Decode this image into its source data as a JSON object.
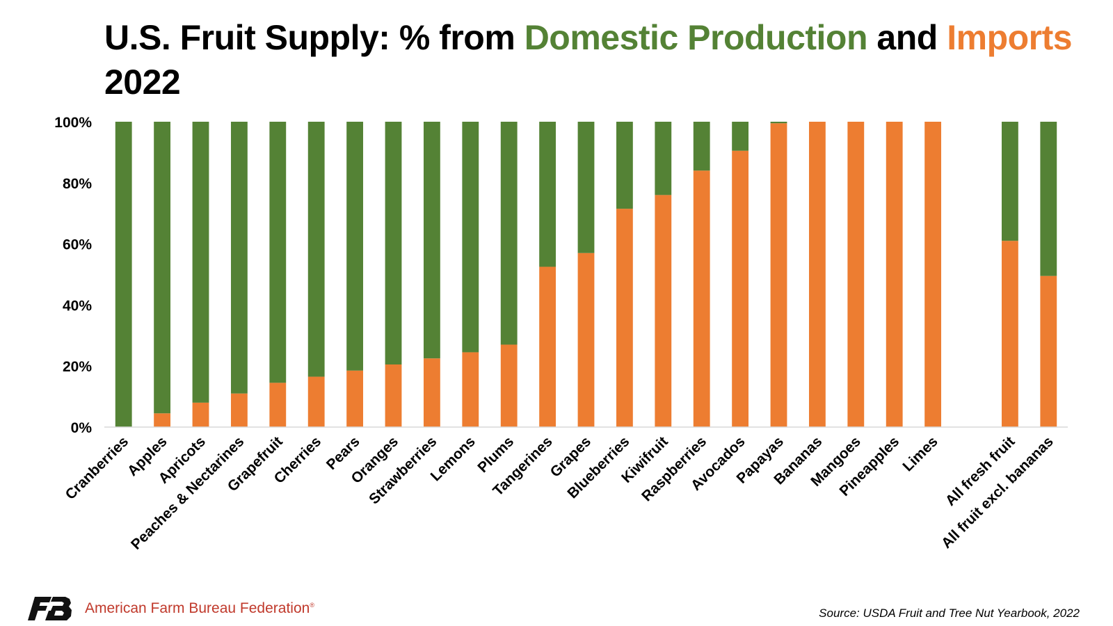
{
  "title": {
    "part1": "U.S. Fruit Supply: % from ",
    "domestic": "Domestic Production",
    "and": " and ",
    "imports": "Imports",
    "year": "2022"
  },
  "footer": {
    "organization": "American Farm Bureau Federation",
    "trademark": "®",
    "logo": "afbf-logo",
    "source": "Source: USDA Fruit and Tree Nut Yearbook, 2022"
  },
  "colors": {
    "domestic": "#548235",
    "imports": "#ED7D31",
    "axis": "#D9D9D9",
    "brand_red": "#C0392B"
  },
  "chart_data": {
    "type": "bar",
    "stacked": true,
    "categories": [
      "Cranberries",
      "Apples",
      "Apricots",
      "Peaches & Nectarines",
      "Grapefruit",
      "Cherries",
      "Pears",
      "Oranges",
      "Strawberries",
      "Lemons",
      "Plums",
      "Tangerines",
      "Grapes",
      "Blueberries",
      "Kiwifruit",
      "Raspberries",
      "Avocados",
      "Papayas",
      "Bananas",
      "Mangoes",
      "Pineapples",
      "Limes",
      "All fresh fruit",
      "All fruit excl. bananas"
    ],
    "gap_before": "All fresh fruit",
    "series": [
      {
        "name": "Imports",
        "color": "#ED7D31",
        "values": [
          0,
          4.5,
          8,
          11,
          14.5,
          16.5,
          18.5,
          20.5,
          22.5,
          24.5,
          27,
          52.5,
          57,
          71.5,
          76,
          84,
          90.5,
          99.5,
          100,
          100,
          100,
          100,
          61,
          49.5
        ]
      },
      {
        "name": "Domestic Production",
        "color": "#548235",
        "values": [
          100,
          95.5,
          92,
          89,
          85.5,
          83.5,
          81.5,
          79.5,
          77.5,
          75.5,
          73,
          47.5,
          43,
          28.5,
          24,
          16,
          9.5,
          0.5,
          0,
          0,
          0,
          0,
          39,
          50.5
        ]
      }
    ],
    "ylim": [
      0,
      100
    ],
    "yticks": [
      "0%",
      "20%",
      "40%",
      "60%",
      "80%",
      "100%"
    ],
    "ytick_values": [
      0,
      20,
      40,
      60,
      80,
      100
    ],
    "unit": "%",
    "grid": false,
    "legend": "none"
  }
}
